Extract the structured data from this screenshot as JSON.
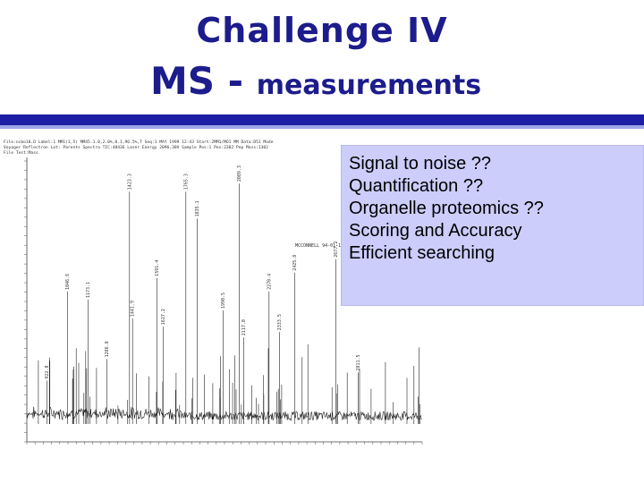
{
  "slide": {
    "title_line1": "Challenge IV",
    "title_line2_a": "MS",
    "title_line2_b": " - ",
    "title_line2_c": "measurements"
  },
  "colors": {
    "title": "#1c1c8c",
    "rule": "#1d1da6",
    "note_bg": "#cccdfb"
  },
  "notes": [
    "Signal to noise ??",
    "Quantification ??",
    "Organelle proteomics ??",
    "Scoring and Accuracy",
    "Efficient searching"
  ],
  "spectrum": {
    "header_lines": [
      "File:ncbo18.D  Label:1 MM1(1,5)  MM45.1.0,2.0%,0.1,96.5%,T  Seq:1  MAY 1999  12:43  Start:2MM1/MO1 MM Data:D51 Mode",
      "Voyager Reflectron  Lot: Parents Spectra  TIC:48436  Laser Energy 2096,30V  Sample Pos:1 Pos:2302 Pep Mass:1302",
      "File Test:Mass"
    ],
    "sample_label": "MCCONNELL  94-01-1",
    "peaks": [
      {
        "mz": 1423.3,
        "label": "1423.3"
      },
      {
        "mz": 1765.3,
        "label": "1765.3"
      },
      {
        "mz": 1835.1,
        "label": "1835.1"
      },
      {
        "mz": 2089.3,
        "label": "2089.3"
      },
      {
        "mz": 2425.8,
        "label": "2425.8"
      },
      {
        "mz": 2677.2,
        "label": "2677.2"
      },
      {
        "mz": 1046.6,
        "label": "1046.6"
      },
      {
        "mz": 1173.1,
        "label": "1173.1"
      },
      {
        "mz": 1591.4,
        "label": "1591.4"
      },
      {
        "mz": 2270.4,
        "label": "2270.4"
      },
      {
        "mz": 1990.5,
        "label": "1990.5"
      },
      {
        "mz": 1441.9,
        "label": "1441.9"
      },
      {
        "mz": 1627.2,
        "label": "1627.2"
      },
      {
        "mz": 2117.0,
        "label": "2117.0"
      },
      {
        "mz": 2333.5,
        "label": "2333.5"
      },
      {
        "mz": 1286.8,
        "label": "1286.8"
      },
      {
        "mz": 2811.5,
        "label": "2811.5"
      },
      {
        "mz": 922.0,
        "label": "922.0"
      }
    ]
  }
}
